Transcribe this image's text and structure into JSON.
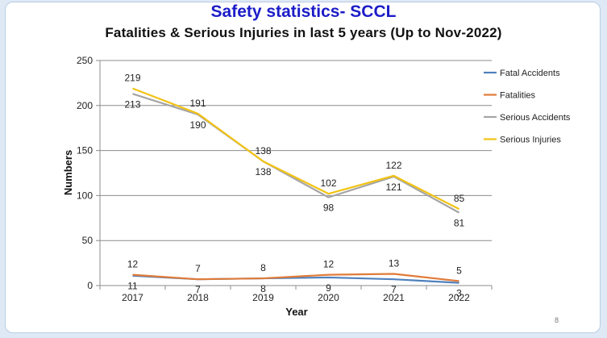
{
  "title": "Safety statistics- SCCL",
  "subtitle": "Fatalities & Serious Injuries in last 5 years (Up to Nov-2022)",
  "page_number": "8",
  "chart_data": {
    "type": "line",
    "categories": [
      "2017",
      "2018",
      "2019",
      "2020",
      "2021",
      "2022"
    ],
    "xlabel": "Year",
    "ylabel": "Numbers",
    "ylim": [
      0,
      250
    ],
    "yticks": [
      0,
      50,
      100,
      150,
      200,
      250
    ],
    "grid": true,
    "legend_position": "right",
    "series": [
      {
        "name": "Fatal Accidents",
        "color": "#4f81bd",
        "values": [
          11,
          7,
          8,
          9,
          7,
          3
        ],
        "label_side": "below"
      },
      {
        "name": "Fatalities",
        "color": "#e07b39",
        "values": [
          12,
          7,
          8,
          12,
          13,
          5
        ],
        "label_side": "above"
      },
      {
        "name": "Serious Accidents",
        "color": "#a5a5a5",
        "values": [
          213,
          190,
          138,
          98,
          121,
          81
        ],
        "label_side": "below"
      },
      {
        "name": "Serious Injuries",
        "color": "#f2c314",
        "values": [
          219,
          191,
          138,
          102,
          122,
          85
        ],
        "label_side": "above"
      }
    ]
  }
}
